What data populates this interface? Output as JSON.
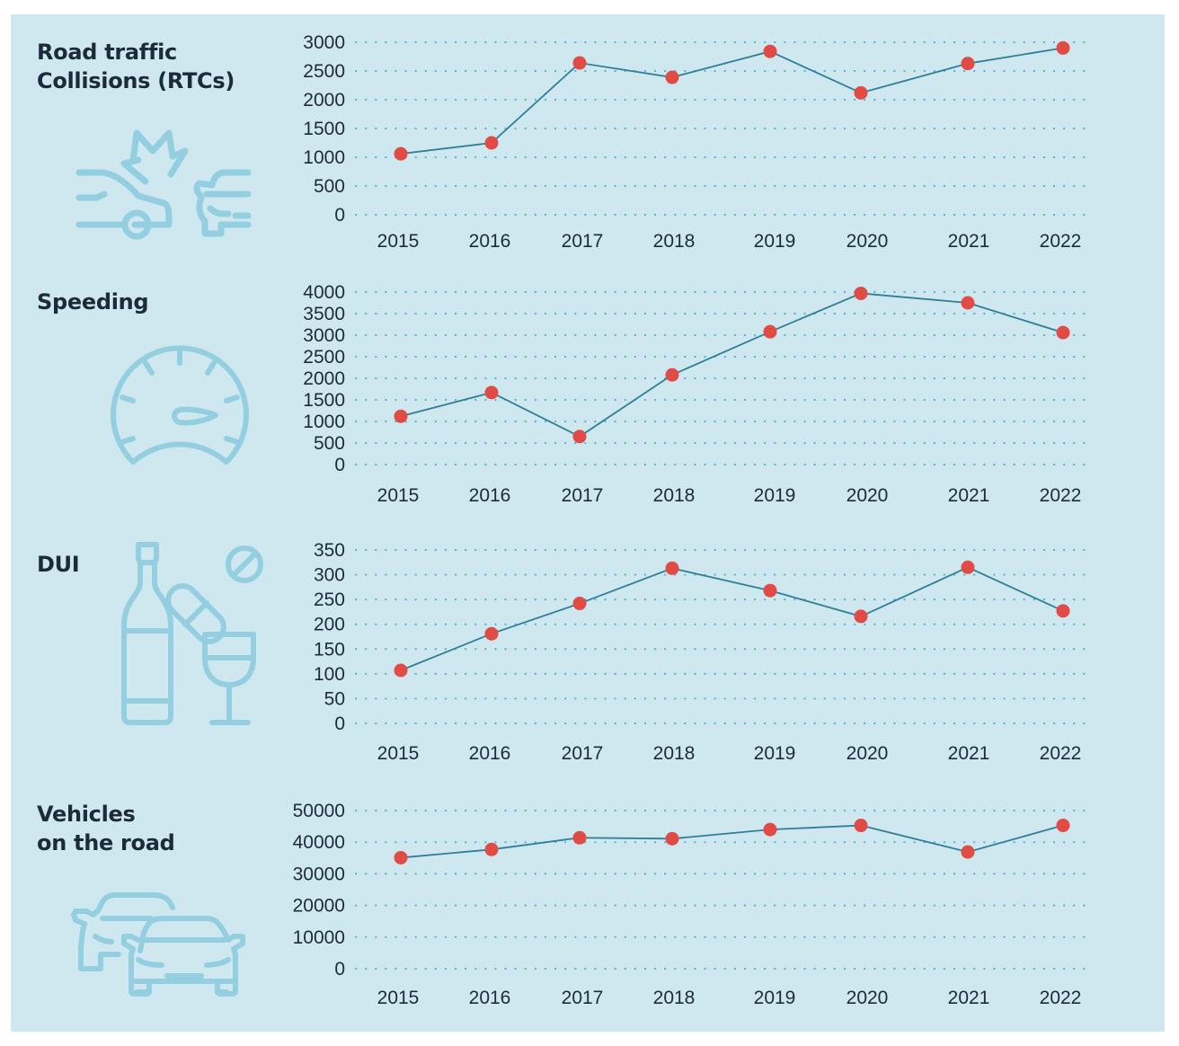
{
  "colors": {
    "panel_bg": "#cfe7ef",
    "icon": "#93cfe0",
    "line": "#2e7f98",
    "marker": "#e04b45",
    "grid": "#4fb3d3",
    "text": "#1c2b3a"
  },
  "panels": [
    {
      "title": "Road traffic\nCollisions (RTCs)",
      "icon": "car-collision-icon"
    },
    {
      "title": "Speeding",
      "icon": "speedometer-icon"
    },
    {
      "title": "DUI",
      "icon": "bottle-pill-glass-icon"
    },
    {
      "title": "Vehicles\non the road",
      "icon": "two-cars-icon"
    }
  ],
  "chart_data": [
    {
      "type": "line",
      "title": "Road traffic Collisions (RTCs)",
      "xlabel": "",
      "ylabel": "",
      "categories": [
        "2015",
        "2016",
        "2017",
        "2018",
        "2019",
        "2020",
        "2021",
        "2022"
      ],
      "values": [
        1060,
        1250,
        2640,
        2390,
        2840,
        2120,
        2630,
        2900
      ],
      "yticks": [
        0,
        500,
        1000,
        1500,
        2000,
        2500,
        3000
      ],
      "ylim": [
        0,
        3000
      ],
      "grid": "dotted horizontal",
      "legend": "none"
    },
    {
      "type": "line",
      "title": "Speeding",
      "xlabel": "",
      "ylabel": "",
      "categories": [
        "2015",
        "2016",
        "2017",
        "2018",
        "2019",
        "2020",
        "2021",
        "2022"
      ],
      "values": [
        1120,
        1670,
        650,
        2080,
        3080,
        3970,
        3750,
        3060
      ],
      "yticks": [
        0,
        500,
        1000,
        1500,
        2000,
        2500,
        3000,
        3500,
        4000
      ],
      "ylim": [
        0,
        4000
      ],
      "grid": "dotted horizontal",
      "legend": "none"
    },
    {
      "type": "line",
      "title": "DUI",
      "xlabel": "",
      "ylabel": "",
      "categories": [
        "2015",
        "2016",
        "2017",
        "2018",
        "2019",
        "2020",
        "2021",
        "2022"
      ],
      "values": [
        107,
        181,
        242,
        313,
        268,
        216,
        315,
        227
      ],
      "yticks": [
        0,
        50,
        100,
        150,
        200,
        250,
        300,
        350
      ],
      "ylim": [
        0,
        350
      ],
      "grid": "dotted horizontal",
      "legend": "none"
    },
    {
      "type": "line",
      "title": "Vehicles on the road",
      "xlabel": "",
      "ylabel": "",
      "categories": [
        "2015",
        "2016",
        "2017",
        "2018",
        "2019",
        "2020",
        "2021",
        "2022"
      ],
      "values": [
        35100,
        37700,
        41400,
        41100,
        44000,
        45300,
        36900,
        45300
      ],
      "yticks": [
        0,
        10000,
        20000,
        30000,
        40000,
        50000
      ],
      "ylim": [
        0,
        50000
      ],
      "grid": "dotted horizontal",
      "legend": "none"
    }
  ]
}
